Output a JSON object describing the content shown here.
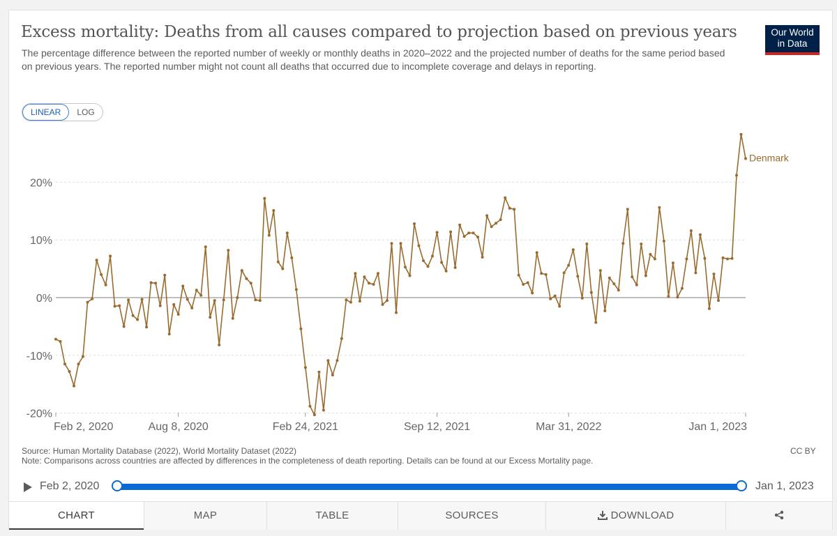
{
  "header": {
    "title": "Excess mortality: Deaths from all causes compared to projection based on previous years",
    "subtitle": "The percentage difference between the reported number of weekly or monthly deaths in 2020–2022 and the projected number of deaths for the same period based on previous years. The reported number might not count all deaths that occurred due to incomplete coverage and delays in reporting.",
    "logo_line1": "Our World",
    "logo_line2": "in Data"
  },
  "scale_toggle": {
    "linear": "LINEAR",
    "log": "LOG",
    "selected": "LINEAR"
  },
  "colors": {
    "series": "#9a6b2e",
    "zero_line": "#9a9a9a",
    "grid": "#dddddd",
    "timeline": "#0a6ad2"
  },
  "chart_data": {
    "type": "line",
    "title": "Excess mortality: Deaths from all causes compared to projection based on previous years",
    "xlabel": "",
    "ylabel": "",
    "ylim": [
      -20,
      28
    ],
    "y_ticks": [
      -20,
      -10,
      0,
      10,
      20
    ],
    "y_tick_labels": [
      "-20%",
      "-10%",
      "0%",
      "10%",
      "20%"
    ],
    "x_tick_labels": [
      "Feb 2, 2020",
      "Aug 8, 2020",
      "Feb 24, 2021",
      "Sep 12, 2021",
      "Mar 31, 2022",
      "Jan 1, 2023"
    ],
    "x_tick_weeks": [
      0,
      27,
      55,
      84,
      113,
      152
    ],
    "series": [
      {
        "name": "Denmark",
        "start": "Feb 2, 2020",
        "interval": "weekly",
        "values": [
          -7.2,
          -7.6,
          -11.5,
          -12.8,
          -15.3,
          -11.5,
          -10.2,
          -0.8,
          -0.2,
          6.5,
          4.0,
          2.2,
          7.2,
          -1.5,
          -1.4,
          -5.0,
          -0.4,
          -3.1,
          -3.8,
          -0.3,
          -5.1,
          2.6,
          2.5,
          -1.4,
          3.9,
          -6.3,
          -1.2,
          -2.9,
          2.0,
          -0.3,
          -1.8,
          1.3,
          0.4,
          8.8,
          -3.4,
          -0.5,
          -8.2,
          -0.4,
          8.2,
          -3.6,
          0.0,
          4.7,
          3.3,
          2.5,
          -0.4,
          -0.5,
          17.2,
          10.8,
          15.1,
          6.2,
          5.0,
          11.2,
          6.9,
          1.4,
          -5.4,
          -12.1,
          -18.8,
          -20.3,
          -12.9,
          -19.5,
          -10.9,
          -13.4,
          -10.9,
          -7.1,
          -0.4,
          -0.8,
          4.2,
          -0.6,
          3.6,
          2.5,
          2.3,
          4.2,
          -1.2,
          -0.5,
          9.4,
          -2.6,
          9.4,
          5.3,
          3.8,
          12.8,
          9.0,
          6.4,
          5.4,
          7.2,
          11.3,
          6.1,
          4.6,
          11.4,
          5.2,
          12.6,
          10.6,
          11.2,
          11.2,
          10.5,
          7.0,
          14.2,
          12.3,
          12.9,
          13.5,
          17.3,
          15.5,
          15.3,
          3.9,
          2.3,
          2.6,
          0.8,
          7.8,
          4.2,
          4.0,
          -0.2,
          0.3,
          -1.5,
          4.3,
          5.6,
          8.3,
          3.7,
          -0.1,
          9.3,
          0.9,
          -4.3,
          4.7,
          -2.3,
          3.4,
          2.4,
          1.3,
          9.4,
          15.3,
          3.6,
          2.2,
          9.3,
          3.8,
          7.5,
          6.7,
          15.6,
          9.8,
          0.2,
          6.0,
          0.1,
          1.6,
          6.7,
          11.6,
          4.3,
          10.9,
          6.8,
          -1.9,
          4.1,
          -0.5,
          6.9,
          6.7,
          6.8,
          21.2,
          28.3,
          24.1
        ]
      }
    ]
  },
  "series_label": "Denmark",
  "footer": {
    "source": "Source: Human Mortality Database (2022), World Mortality Dataset (2022)",
    "note": "Note: Comparisons across countries are affected by differences in the completeness of death reporting. Details can be found at our Excess Mortality page.",
    "license": "CC BY"
  },
  "timeline": {
    "start": "Feb 2, 2020",
    "end": "Jan 1, 2023"
  },
  "tabs": [
    {
      "label": "CHART",
      "active": true
    },
    {
      "label": "MAP",
      "active": false
    },
    {
      "label": "TABLE",
      "active": false
    },
    {
      "label": "SOURCES",
      "active": false
    },
    {
      "label": "DOWNLOAD",
      "active": false
    },
    {
      "label": "",
      "active": false
    }
  ]
}
